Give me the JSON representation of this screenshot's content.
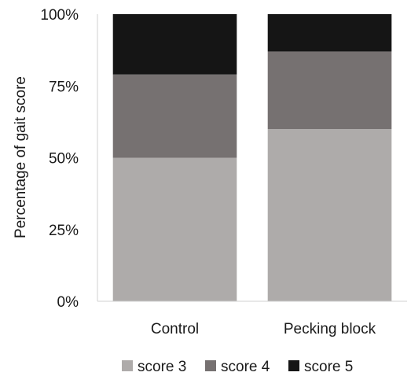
{
  "chart_data": {
    "type": "bar",
    "stacked": true,
    "percent": true,
    "categories": [
      "Control",
      "Pecking block"
    ],
    "series": [
      {
        "name": "score 3",
        "values": [
          50,
          60
        ],
        "color": "#aeabaa"
      },
      {
        "name": "score 4",
        "values": [
          29,
          27
        ],
        "color": "#767171"
      },
      {
        "name": "score 5",
        "values": [
          21,
          13
        ],
        "color": "#151515"
      }
    ],
    "ylabel": "Percentage of gait score",
    "xlabel": "",
    "ylim": [
      0,
      100
    ],
    "yticks": [
      "0%",
      "25%",
      "50%",
      "75%",
      "100%"
    ],
    "grid": false,
    "legend_position": "bottom"
  }
}
